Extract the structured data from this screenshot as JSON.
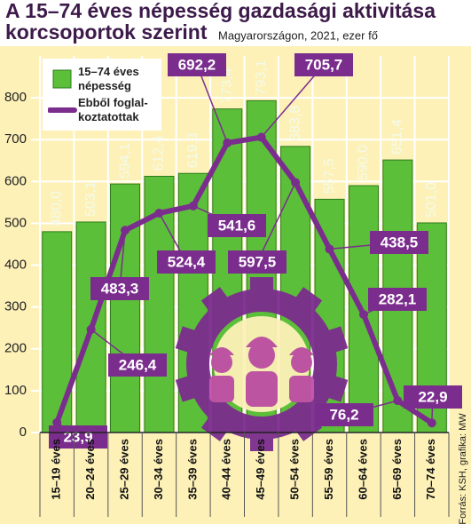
{
  "chart_data": {
    "type": "bar",
    "title": "A 15–74 éves népesség gazdasági aktivitása",
    "title_line2": "korcsoportok szerint",
    "subtitle": "Magyarországon, 2021, ezer fő",
    "source": "Forrás: KSH, grafika: MW",
    "categories": [
      "15–19 éves",
      "20–24 éves",
      "25–29 éves",
      "30–34 éves",
      "35–39 éves",
      "40–44 éves",
      "45–49 éves",
      "50–54 éves",
      "55–59 éves",
      "60–64 éves",
      "65–69 éves",
      "70–74 éves"
    ],
    "series": [
      {
        "name": "15–74 éves népesség",
        "type": "bar",
        "color": "#5cbf3a",
        "values": [
          480.0,
          503.1,
          594.1,
          612.4,
          619.3,
          773.4,
          793.1,
          683.8,
          557.5,
          590.0,
          651.4,
          501.0
        ],
        "value_labels": [
          "480,0",
          "503,1",
          "594,1",
          "612,4",
          "619,3",
          "773,4",
          "793,1",
          "683,8",
          "557,5",
          "590,0",
          "651,4",
          "501,0"
        ]
      },
      {
        "name": "Ebből foglal­koztatottak",
        "type": "line",
        "color": "#7b2d8e",
        "values": [
          23.9,
          246.4,
          483.3,
          524.4,
          541.6,
          692.2,
          705.7,
          597.5,
          438.5,
          282.1,
          76.2,
          22.9
        ],
        "value_labels": [
          "23,9",
          "246,4",
          "483,3",
          "524,4",
          "541,6",
          "692,2",
          "705,7",
          "597,5",
          "438,5",
          "282,1",
          "76,2",
          "22,9"
        ]
      }
    ],
    "ylim": [
      0,
      900
    ],
    "yticks": [
      0,
      100,
      200,
      300,
      400,
      500,
      600,
      700,
      800
    ],
    "grid": true
  }
}
